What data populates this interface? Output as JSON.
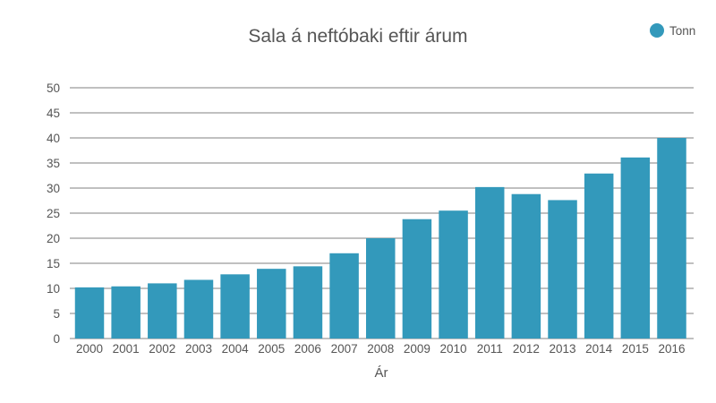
{
  "chart_data": {
    "type": "bar",
    "title": "Sala á neftóbaki eftir árum",
    "xlabel": "Ár",
    "ylabel": "",
    "ylim": [
      0,
      50
    ],
    "yticks": [
      0,
      5,
      10,
      15,
      20,
      25,
      30,
      35,
      40,
      45,
      50
    ],
    "grid": true,
    "legend_position": "top-right",
    "categories": [
      "2000",
      "2001",
      "2002",
      "2003",
      "2004",
      "2005",
      "2006",
      "2007",
      "2008",
      "2009",
      "2010",
      "2011",
      "2012",
      "2013",
      "2014",
      "2015",
      "2016"
    ],
    "series": [
      {
        "name": "Tonn",
        "color": "#3399bb",
        "values": [
          10.2,
          10.4,
          11.0,
          11.7,
          12.8,
          13.9,
          14.4,
          17.0,
          20.0,
          23.8,
          25.5,
          30.2,
          28.8,
          27.6,
          32.9,
          36.1,
          40.0
        ]
      }
    ]
  }
}
